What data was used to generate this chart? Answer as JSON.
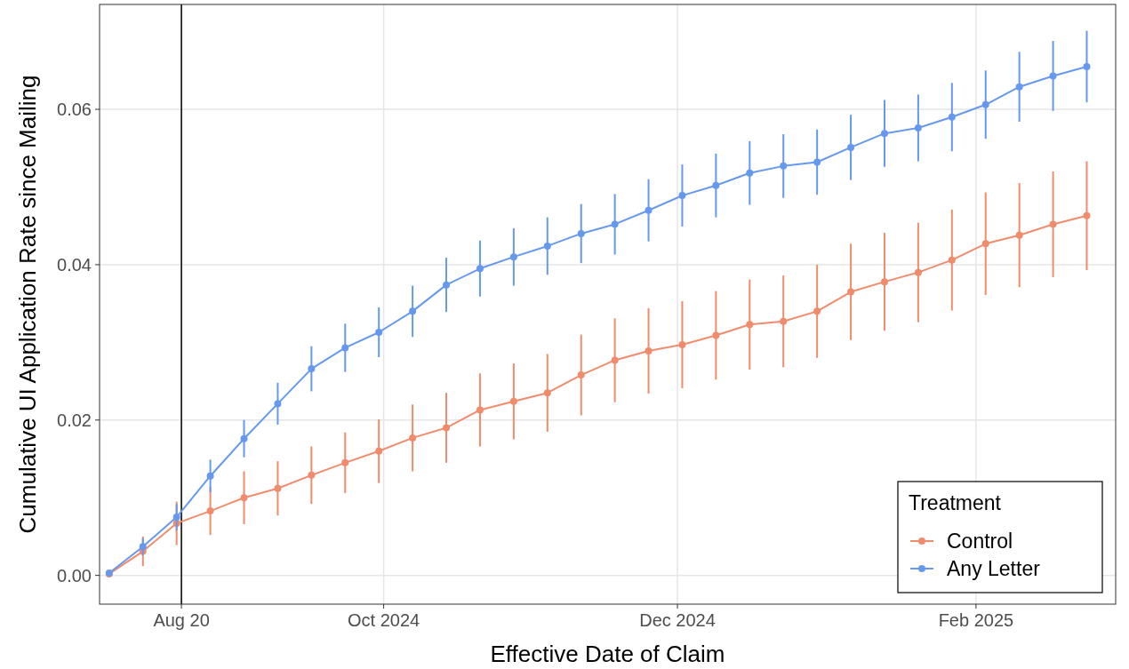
{
  "chart_data": {
    "type": "line",
    "xlabel": "Effective Date of Claim",
    "ylabel": "Cumulative UI Application Rate since Mailing",
    "legend_title": "Treatment",
    "legend": "bottom right",
    "grid": true,
    "marker": "circle",
    "line_style": "solid",
    "x": [
      "2024-08-05",
      "2024-08-12",
      "2024-08-19",
      "2024-08-26",
      "2024-09-02",
      "2024-09-09",
      "2024-09-16",
      "2024-09-23",
      "2024-09-30",
      "2024-10-07",
      "2024-10-14",
      "2024-10-21",
      "2024-10-28",
      "2024-11-04",
      "2024-11-11",
      "2024-11-18",
      "2024-11-25",
      "2024-12-02",
      "2024-12-09",
      "2024-12-16",
      "2024-12-23",
      "2024-12-30",
      "2025-01-06",
      "2025-01-13",
      "2025-01-20",
      "2025-01-27",
      "2025-02-03",
      "2025-02-10",
      "2025-02-17",
      "2025-02-24"
    ],
    "xlim": [
      "2024-08-03",
      "2025-03-02"
    ],
    "xticks": [
      {
        "value": "2024-08-20",
        "label": "Aug 20"
      },
      {
        "value": "2024-10-01",
        "label": "Oct 2024"
      },
      {
        "value": "2024-12-01",
        "label": "Dec 2024"
      },
      {
        "value": "2025-02-01",
        "label": "Feb 2025"
      }
    ],
    "ylim": [
      -0.0037,
      0.0735
    ],
    "yticks": [
      {
        "value": 0,
        "label": "0.00"
      },
      {
        "value": 0.02,
        "label": "0.02"
      },
      {
        "value": 0.04,
        "label": "0.04"
      },
      {
        "value": 0.06,
        "label": "0.06"
      }
    ],
    "ref_lines": [
      {
        "axis": "x",
        "value": "2024-08-20",
        "color": "#000000"
      }
    ],
    "series": [
      {
        "name": "Control",
        "color": "#f08c6c",
        "values": [
          0.0002,
          0.0031,
          0.0067,
          0.0083,
          0.01,
          0.0112,
          0.0129,
          0.0145,
          0.016,
          0.0177,
          0.019,
          0.0213,
          0.0224,
          0.0235,
          0.0258,
          0.0277,
          0.0289,
          0.0297,
          0.0309,
          0.0323,
          0.0327,
          0.034,
          0.0365,
          0.0378,
          0.039,
          0.0406,
          0.0427,
          0.0438,
          0.0452,
          0.0463
        ],
        "errors": [
          0.0004,
          0.0019,
          0.0028,
          0.0031,
          0.0034,
          0.0035,
          0.0037,
          0.0039,
          0.0041,
          0.0043,
          0.0045,
          0.0047,
          0.0049,
          0.005,
          0.0052,
          0.0054,
          0.0055,
          0.0056,
          0.0057,
          0.0058,
          0.0059,
          0.006,
          0.0062,
          0.0063,
          0.0064,
          0.0065,
          0.0066,
          0.0067,
          0.0068,
          0.007
        ]
      },
      {
        "name": "Any Letter",
        "color": "#6699ee",
        "values": [
          0.0003,
          0.0037,
          0.0075,
          0.0128,
          0.0176,
          0.0221,
          0.0266,
          0.0293,
          0.0313,
          0.034,
          0.0374,
          0.0395,
          0.041,
          0.0424,
          0.044,
          0.0452,
          0.047,
          0.0489,
          0.0502,
          0.0518,
          0.0527,
          0.0532,
          0.0551,
          0.0569,
          0.0576,
          0.059,
          0.0606,
          0.0629,
          0.0643,
          0.0655
        ],
        "errors": [
          0.0003,
          0.0011,
          0.0017,
          0.0021,
          0.0024,
          0.0027,
          0.0029,
          0.0031,
          0.0032,
          0.0033,
          0.0035,
          0.0036,
          0.0037,
          0.0037,
          0.0038,
          0.0039,
          0.004,
          0.004,
          0.0041,
          0.0041,
          0.0041,
          0.0042,
          0.0042,
          0.0043,
          0.0043,
          0.0044,
          0.0044,
          0.0045,
          0.0045,
          0.0046
        ]
      }
    ]
  }
}
